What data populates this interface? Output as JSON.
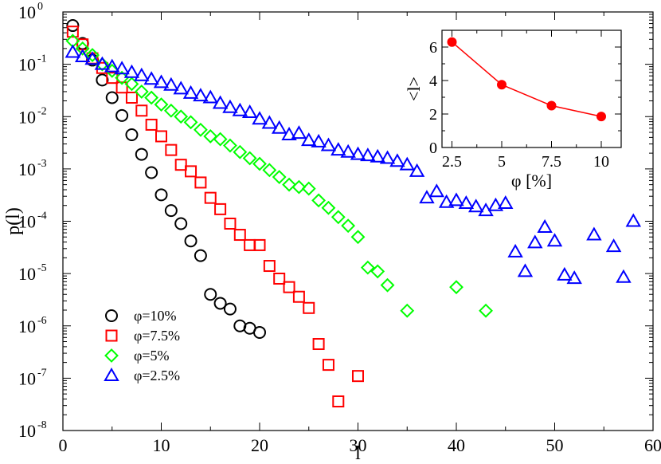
{
  "chart_data": [
    {
      "type": "scatter",
      "xlabel": "l",
      "ylabel": "p(l)",
      "xlim": [
        0,
        60
      ],
      "ylim": [
        1e-08,
        1
      ],
      "yscale": "log",
      "xticks": [
        "0",
        "10",
        "20",
        "30",
        "40",
        "50",
        "60"
      ],
      "yticks": [
        {
          "base": "10",
          "exp": "0"
        },
        {
          "base": "10",
          "exp": "-1"
        },
        {
          "base": "10",
          "exp": "-2"
        },
        {
          "base": "10",
          "exp": "-3"
        },
        {
          "base": "10",
          "exp": "-4"
        },
        {
          "base": "10",
          "exp": "-5"
        },
        {
          "base": "10",
          "exp": "-6"
        },
        {
          "base": "10",
          "exp": "-7"
        },
        {
          "base": "10",
          "exp": "-8"
        }
      ],
      "legend_position": "bottom-left",
      "series": [
        {
          "name": "φ=10%",
          "marker": "circle",
          "color": "#000000",
          "points": [
            [
              1,
              0.55
            ],
            [
              2,
              0.25
            ],
            [
              3,
              0.12
            ],
            [
              4,
              0.05
            ],
            [
              5,
              0.023
            ],
            [
              6,
              0.0105
            ],
            [
              7,
              0.0045
            ],
            [
              8,
              0.0019
            ],
            [
              9,
              0.00085
            ],
            [
              10,
              0.00032
            ],
            [
              11,
              0.00016
            ],
            [
              12,
              9e-05
            ],
            [
              13,
              4.2e-05
            ],
            [
              14,
              2.2e-05
            ],
            [
              15,
              4e-06
            ],
            [
              16,
              2.7e-06
            ],
            [
              17,
              2.1e-06
            ],
            [
              18,
              1e-06
            ],
            [
              19,
              9e-07
            ],
            [
              20,
              7.5e-07
            ]
          ]
        },
        {
          "name": "φ=7.5%",
          "marker": "square",
          "color": "#ff0000",
          "points": [
            [
              1,
              0.42
            ],
            [
              2,
              0.24
            ],
            [
              3,
              0.13
            ],
            [
              4,
              0.085
            ],
            [
              5,
              0.055
            ],
            [
              6,
              0.036
            ],
            [
              7,
              0.023
            ],
            [
              8,
              0.013
            ],
            [
              9,
              0.007
            ],
            [
              10,
              0.0042
            ],
            [
              11,
              0.0023
            ],
            [
              12,
              0.0012
            ],
            [
              13,
              0.0009
            ],
            [
              14,
              0.00055
            ],
            [
              15,
              0.00028
            ],
            [
              16,
              0.00017
            ],
            [
              17,
              9e-05
            ],
            [
              18,
              5.5e-05
            ],
            [
              19,
              3.5e-05
            ],
            [
              20,
              3.5e-05
            ],
            [
              21,
              1.4e-05
            ],
            [
              22,
              8e-06
            ],
            [
              23,
              5.5e-06
            ],
            [
              24,
              3.6e-06
            ],
            [
              25,
              2.2e-06
            ],
            [
              26,
              4.5e-07
            ],
            [
              27,
              1.8e-07
            ],
            [
              28,
              3.6e-08
            ],
            [
              30,
              1.1e-07
            ]
          ]
        },
        {
          "name": "φ=5%",
          "marker": "diamond",
          "color": "#00ff00",
          "points": [
            [
              1,
              0.28
            ],
            [
              2,
              0.2
            ],
            [
              3,
              0.15
            ],
            [
              4,
              0.1
            ],
            [
              5,
              0.075
            ],
            [
              6,
              0.055
            ],
            [
              7,
              0.042
            ],
            [
              8,
              0.03
            ],
            [
              9,
              0.023
            ],
            [
              10,
              0.017
            ],
            [
              11,
              0.013
            ],
            [
              12,
              0.01
            ],
            [
              13,
              0.0078
            ],
            [
              14,
              0.0056
            ],
            [
              15,
              0.0042
            ],
            [
              16,
              0.0037
            ],
            [
              17,
              0.0028
            ],
            [
              18,
              0.0021
            ],
            [
              19,
              0.0016
            ],
            [
              20,
              0.00125
            ],
            [
              21,
              0.00095
            ],
            [
              22,
              0.0007
            ],
            [
              23,
              0.0005
            ],
            [
              24,
              0.00045
            ],
            [
              25,
              0.00042
            ],
            [
              26,
              0.00025
            ],
            [
              27,
              0.00018
            ],
            [
              28,
              0.00012
            ],
            [
              29,
              8.2e-05
            ],
            [
              30,
              5e-05
            ],
            [
              31,
              1.3e-05
            ],
            [
              32,
              1.1e-05
            ],
            [
              33,
              6e-06
            ],
            [
              35,
              1.95e-06
            ],
            [
              40,
              5.5e-06
            ],
            [
              43,
              1.95e-06
            ]
          ]
        },
        {
          "name": "φ=2.5%",
          "marker": "triangle",
          "color": "#0000ff",
          "points": [
            [
              1,
              0.17
            ],
            [
              2,
              0.14
            ],
            [
              3,
              0.125
            ],
            [
              4,
              0.1
            ],
            [
              5,
              0.09
            ],
            [
              6,
              0.082
            ],
            [
              7,
              0.07
            ],
            [
              8,
              0.061
            ],
            [
              9,
              0.052
            ],
            [
              10,
              0.045
            ],
            [
              11,
              0.04
            ],
            [
              12,
              0.034
            ],
            [
              13,
              0.028
            ],
            [
              14,
              0.025
            ],
            [
              15,
              0.023
            ],
            [
              16,
              0.018
            ],
            [
              17,
              0.015
            ],
            [
              18,
              0.013
            ],
            [
              19,
              0.012
            ],
            [
              20,
              0.009
            ],
            [
              21,
              0.0075
            ],
            [
              22,
              0.006
            ],
            [
              23,
              0.0045
            ],
            [
              24,
              0.0048
            ],
            [
              25,
              0.0035
            ],
            [
              26,
              0.0033
            ],
            [
              27,
              0.0028
            ],
            [
              28,
              0.0023
            ],
            [
              29,
              0.0021
            ],
            [
              30,
              0.0019
            ],
            [
              31,
              0.0018
            ],
            [
              32,
              0.0017
            ],
            [
              33,
              0.0016
            ],
            [
              34,
              0.0014
            ],
            [
              35,
              0.0012
            ],
            [
              36,
              0.0009
            ],
            [
              37,
              0.00028
            ],
            [
              38,
              0.00037
            ],
            [
              39,
              0.00023
            ],
            [
              40,
              0.00025
            ],
            [
              41,
              0.00022
            ],
            [
              42,
              0.00019
            ],
            [
              43,
              0.00016
            ],
            [
              44,
              0.0002
            ],
            [
              45,
              0.00022
            ],
            [
              46,
              2.6e-05
            ],
            [
              47,
              1.1e-05
            ],
            [
              48,
              3.9e-05
            ],
            [
              49,
              7.7e-05
            ],
            [
              50,
              4.2e-05
            ],
            [
              51,
              9.4e-06
            ],
            [
              52,
              8.1e-06
            ],
            [
              54,
              5.5e-05
            ],
            [
              56,
              3.3e-05
            ],
            [
              57,
              8.5e-06
            ],
            [
              58,
              0.0001
            ]
          ]
        }
      ]
    },
    {
      "type": "line",
      "position": "inset-top-right",
      "xlabel": "φ [%]",
      "ylabel": "<l>",
      "xlim": [
        2,
        11
      ],
      "ylim": [
        0,
        7
      ],
      "xticks": [
        "2.5",
        "5",
        "7.5",
        "10"
      ],
      "yticks": [
        "0",
        "2",
        "4",
        "6"
      ],
      "color": "#ff0000",
      "x": [
        2.5,
        5,
        7.5,
        10
      ],
      "y": [
        6.3,
        3.75,
        2.5,
        1.85
      ]
    }
  ]
}
